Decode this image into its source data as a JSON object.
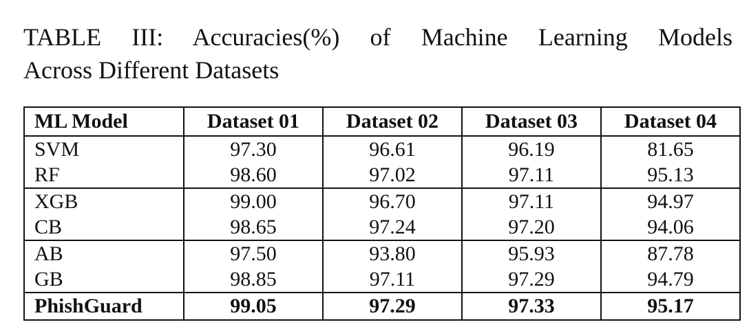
{
  "caption": {
    "line1": "TABLE III: Accuracies(%) of Machine Learning Models",
    "line2": "Across Different Datasets"
  },
  "table": {
    "headers": [
      "ML Model",
      "Dataset 01",
      "Dataset 02",
      "Dataset 03",
      "Dataset 04"
    ],
    "rows": [
      {
        "model": "SVM",
        "values": [
          "97.30",
          "96.61",
          "96.19",
          "81.65"
        ]
      },
      {
        "model": "RF",
        "values": [
          "98.60",
          "97.02",
          "97.11",
          "95.13"
        ]
      },
      {
        "model": "XGB",
        "values": [
          "99.00",
          "96.70",
          "97.11",
          "94.97"
        ]
      },
      {
        "model": "CB",
        "values": [
          "98.65",
          "97.24",
          "97.20",
          "94.06"
        ]
      },
      {
        "model": "AB",
        "values": [
          "97.50",
          "93.80",
          "95.93",
          "87.78"
        ]
      },
      {
        "model": "GB",
        "values": [
          "98.85",
          "97.11",
          "97.29",
          "94.79"
        ]
      },
      {
        "model": "PhishGuard",
        "values": [
          "99.05",
          "97.29",
          "97.33",
          "95.17"
        ]
      }
    ]
  }
}
